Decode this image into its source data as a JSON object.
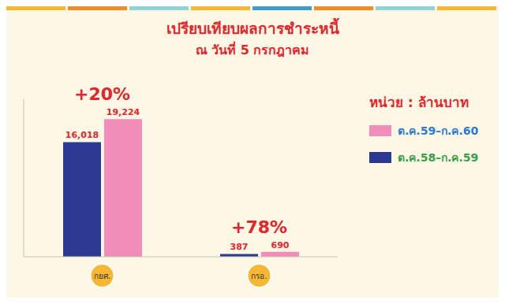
{
  "chart_data": {
    "type": "bar",
    "title": "เปรียบเทียบผลการชำระหนี้",
    "subtitle": "ณ วันที่ 5 กรกฎาคม",
    "unit_label": "หน่วย : ล้านบาท",
    "categories": [
      "กยศ.",
      "กรอ."
    ],
    "series": [
      {
        "name": "ต.ค.59–ก.ค.60",
        "color": "#f28cb8",
        "values": [
          19224,
          690
        ],
        "value_labels": [
          "19,224",
          "690"
        ]
      },
      {
        "name": "ต.ค.58–ก.ค.59",
        "color": "#2b3990",
        "values": [
          16018,
          387
        ],
        "value_labels": [
          "16,018",
          "387"
        ]
      }
    ],
    "annotations": [
      "+20%",
      "+78%"
    ],
    "ylim": [
      0,
      22000
    ],
    "tick_labels": "x",
    "data_labels": true,
    "legend": "right"
  }
}
